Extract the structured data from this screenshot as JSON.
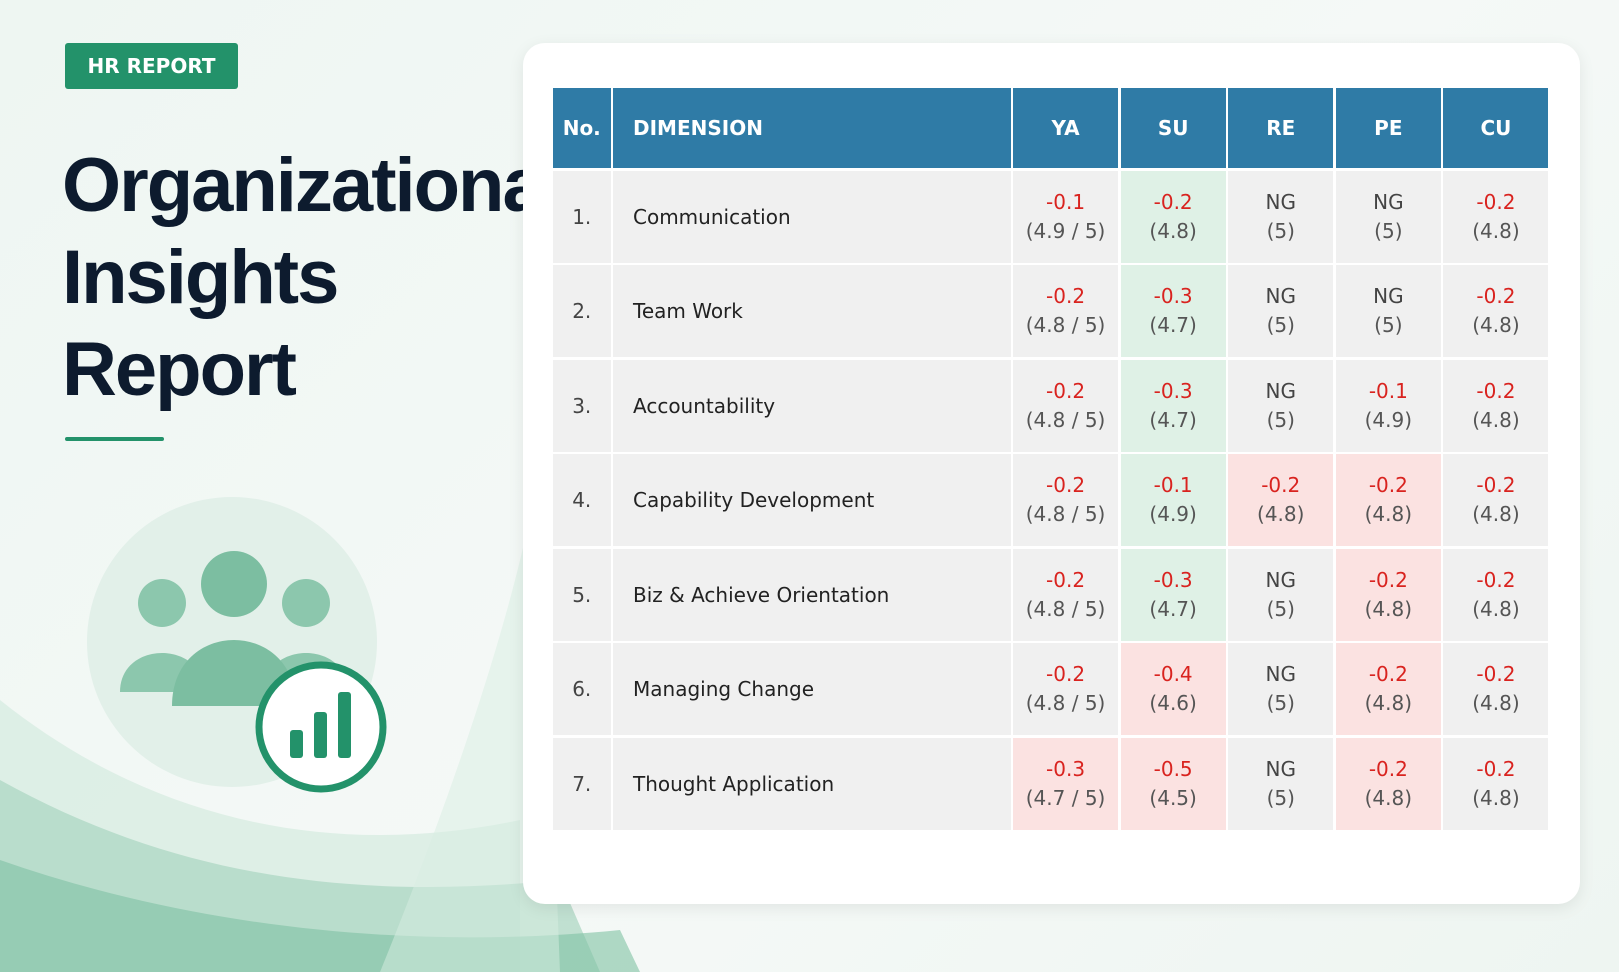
{
  "header": {
    "badge": "HR REPORT",
    "title_lines": [
      "Organizational",
      "Insights",
      "Report"
    ]
  },
  "table": {
    "header_color": "#2f7ba6",
    "columns": [
      "No.",
      "DIMENSION",
      "YA",
      "SU",
      "RE",
      "PE",
      "CU"
    ],
    "rows": [
      {
        "no": "1.",
        "dimension": "Communication",
        "cells": [
          {
            "delta": "-0.1",
            "score": "(4.9 / 5)",
            "color": "#d9231f"
          },
          {
            "delta": "-0.2",
            "score": "(4.8)",
            "color": "#d9231f",
            "bg": "#dff1e6"
          },
          {
            "delta": "NG",
            "score": "(5)",
            "color": "#444444"
          },
          {
            "delta": "NG",
            "score": "(5)",
            "color": "#444444"
          },
          {
            "delta": "-0.2",
            "score": "(4.8)",
            "color": "#d9231f"
          }
        ]
      },
      {
        "no": "2.",
        "dimension": "Team Work",
        "cells": [
          {
            "delta": "-0.2",
            "score": "(4.8 / 5)",
            "color": "#d9231f"
          },
          {
            "delta": "-0.3",
            "score": "(4.7)",
            "color": "#d9231f",
            "bg": "#dff1e6"
          },
          {
            "delta": "NG",
            "score": "(5)",
            "color": "#444444"
          },
          {
            "delta": "NG",
            "score": "(5)",
            "color": "#444444"
          },
          {
            "delta": "-0.2",
            "score": "(4.8)",
            "color": "#d9231f"
          }
        ]
      },
      {
        "no": "3.",
        "dimension": "Accountability",
        "cells": [
          {
            "delta": "-0.2",
            "score": "(4.8 / 5)",
            "color": "#d9231f"
          },
          {
            "delta": "-0.3",
            "score": "(4.7)",
            "color": "#d9231f",
            "bg": "#dff1e6"
          },
          {
            "delta": "NG",
            "score": "(5)",
            "color": "#444444"
          },
          {
            "delta": "-0.1",
            "score": "(4.9)",
            "color": "#d9231f"
          },
          {
            "delta": "-0.2",
            "score": "(4.8)",
            "color": "#d9231f"
          }
        ]
      },
      {
        "no": "4.",
        "dimension": "Capability Development",
        "cells": [
          {
            "delta": "-0.2",
            "score": "(4.8 / 5)",
            "color": "#d9231f"
          },
          {
            "delta": "-0.1",
            "score": "(4.9)",
            "color": "#d9231f",
            "bg": "#dff1e6"
          },
          {
            "delta": "-0.2",
            "score": "(4.8)",
            "color": "#d9231f",
            "bg": "#fbe2e1"
          },
          {
            "delta": "-0.2",
            "score": "(4.8)",
            "color": "#d9231f",
            "bg": "#fbe2e1"
          },
          {
            "delta": "-0.2",
            "score": "(4.8)",
            "color": "#d9231f"
          }
        ]
      },
      {
        "no": "5.",
        "dimension": "Biz & Achieve Orientation",
        "cells": [
          {
            "delta": "-0.2",
            "score": "(4.8 / 5)",
            "color": "#d9231f"
          },
          {
            "delta": "-0.3",
            "score": "(4.7)",
            "color": "#d9231f",
            "bg": "#dff1e6"
          },
          {
            "delta": "NG",
            "score": "(5)",
            "color": "#444444"
          },
          {
            "delta": "-0.2",
            "score": "(4.8)",
            "color": "#d9231f",
            "bg": "#fbe2e1"
          },
          {
            "delta": "-0.2",
            "score": "(4.8)",
            "color": "#d9231f"
          }
        ]
      },
      {
        "no": "6.",
        "dimension": "Managing Change",
        "cells": [
          {
            "delta": "-0.2",
            "score": "(4.8 / 5)",
            "color": "#d9231f"
          },
          {
            "delta": "-0.4",
            "score": "(4.6)",
            "color": "#d9231f",
            "bg": "#fbe2e1"
          },
          {
            "delta": "NG",
            "score": "(5)",
            "color": "#444444"
          },
          {
            "delta": "-0.2",
            "score": "(4.8)",
            "color": "#d9231f",
            "bg": "#fbe2e1"
          },
          {
            "delta": "-0.2",
            "score": "(4.8)",
            "color": "#d9231f"
          }
        ]
      },
      {
        "no": "7.",
        "dimension": "Thought Application",
        "cells": [
          {
            "delta": "-0.3",
            "score": "(4.7 / 5)",
            "color": "#d9231f",
            "bg": "#fbe2e1"
          },
          {
            "delta": "-0.5",
            "score": "(4.5)",
            "color": "#d9231f",
            "bg": "#fbe2e1"
          },
          {
            "delta": "NG",
            "score": "(5)",
            "color": "#444444"
          },
          {
            "delta": "-0.2",
            "score": "(4.8)",
            "color": "#d9231f",
            "bg": "#fbe2e1"
          },
          {
            "delta": "-0.2",
            "score": "(4.8)",
            "color": "#d9231f"
          }
        ]
      }
    ]
  }
}
